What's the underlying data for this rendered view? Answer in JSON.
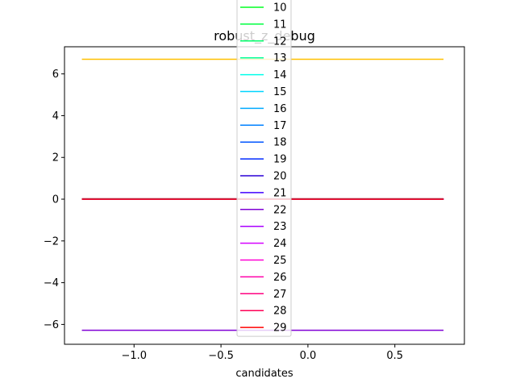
{
  "chart_data": {
    "type": "line",
    "title": "robust_z_debug",
    "xlabel": "candidates",
    "ylabel": "",
    "xlim": [
      -1.4,
      0.9
    ],
    "ylim": [
      -6.95,
      7.3
    ],
    "xticks": [
      -1.0,
      -0.5,
      0.0,
      0.5
    ],
    "xtick_labels": [
      "−1.0",
      "−0.5",
      "0.0",
      "0.5"
    ],
    "yticks": [
      -6,
      -4,
      -2,
      0,
      2,
      4,
      6
    ],
    "ytick_labels": [
      "−6",
      "−4",
      "−2",
      "0",
      "2",
      "4",
      "6"
    ],
    "grid": false,
    "legend_placement": "upper center, overflowing top of axes",
    "x": [
      -1.3,
      0.78
    ],
    "series": [
      {
        "name": "10",
        "color": "#00ff20",
        "values": [
          0,
          0
        ]
      },
      {
        "name": "11",
        "color": "#00ff40",
        "values": [
          0,
          0
        ]
      },
      {
        "name": "12",
        "color": "#00ff6a",
        "values": [
          0,
          0
        ]
      },
      {
        "name": "13",
        "color": "#00ff95",
        "values": [
          0,
          0
        ]
      },
      {
        "name": "14",
        "color": "#00ffea",
        "values": [
          0,
          0
        ]
      },
      {
        "name": "15",
        "color": "#00d5ff",
        "values": [
          0,
          0
        ]
      },
      {
        "name": "16",
        "color": "#00aaff",
        "values": [
          0,
          0
        ]
      },
      {
        "name": "17",
        "color": "#0080ff",
        "values": [
          0,
          0
        ]
      },
      {
        "name": "18",
        "color": "#0055ff",
        "values": [
          0,
          0
        ]
      },
      {
        "name": "19",
        "color": "#002bff",
        "values": [
          0,
          0
        ]
      },
      {
        "name": "20",
        "color": "#2a00d5",
        "values": [
          0,
          0
        ]
      },
      {
        "name": "21",
        "color": "#4000ff",
        "values": [
          0,
          0
        ]
      },
      {
        "name": "22",
        "color": "#7f00d5",
        "values": [
          -6.28,
          -6.28
        ]
      },
      {
        "name": "23",
        "color": "#aa00ff",
        "values": [
          0,
          0
        ]
      },
      {
        "name": "24",
        "color": "#d500ff",
        "values": [
          0,
          0
        ]
      },
      {
        "name": "25",
        "color": "#ff00d5",
        "values": [
          0,
          0
        ]
      },
      {
        "name": "26",
        "color": "#ff00aa",
        "values": [
          0,
          0
        ]
      },
      {
        "name": "27",
        "color": "#ff0080",
        "values": [
          0,
          0
        ]
      },
      {
        "name": "28",
        "color": "#ff0055",
        "values": [
          0,
          0
        ]
      },
      {
        "name": "29",
        "color": "#ff0000",
        "values": [
          0,
          0
        ]
      }
    ],
    "unlabeled_series": [
      {
        "color": "#ffc000",
        "values": [
          6.7,
          6.7
        ]
      },
      {
        "color": "#c41e3a",
        "values": [
          0.02,
          0.02
        ]
      }
    ]
  }
}
